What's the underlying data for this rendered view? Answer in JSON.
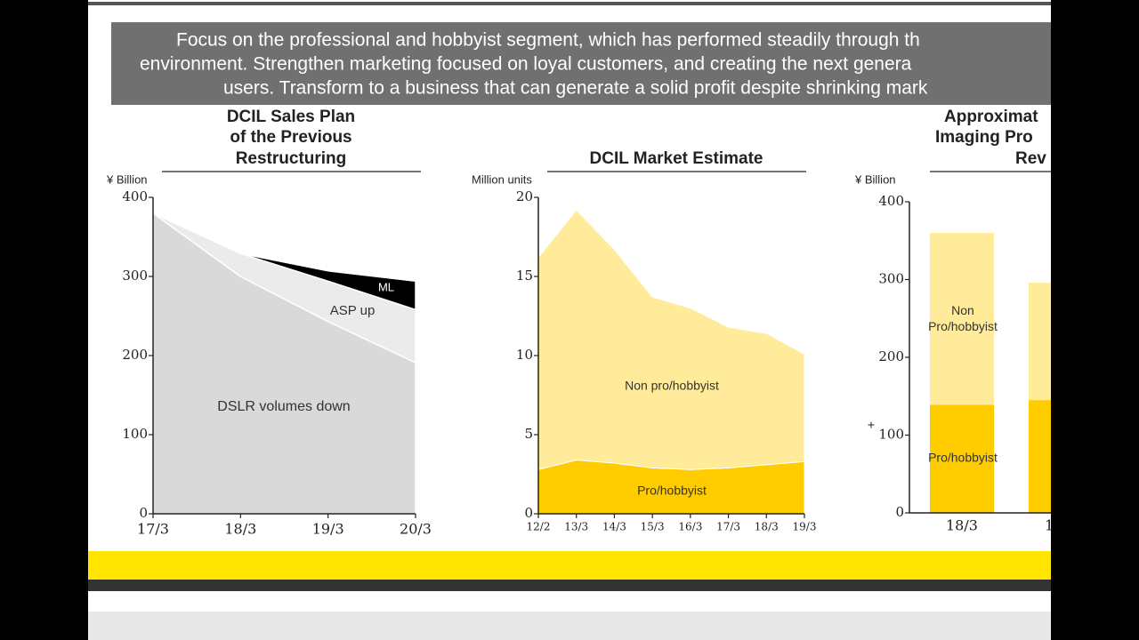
{
  "banner": {
    "lines": [
      "Focus on the professional and hobbyist segment, which has performed steadily through th",
      "environment. Strengthen marketing focused on loyal customers, and creating the next genera",
      "users. Transform to a business that can generate a solid profit despite shrinking mark"
    ]
  },
  "chart_data": [
    {
      "type": "area",
      "stacked": true,
      "title": [
        "DCIL Sales Plan",
        "of the Previous",
        "Restructuring"
      ],
      "y_label": "¥ Billion",
      "categories": [
        "17/3",
        "18/3",
        "19/3",
        "20/3"
      ],
      "ylim": [
        0,
        400
      ],
      "yticks": [
        0,
        100,
        200,
        300,
        400
      ],
      "series": [
        {
          "name": "DSLR volumes down",
          "color": "#d9d9d9",
          "values": [
            380,
            300,
            243,
            191
          ]
        },
        {
          "name": "ASP up",
          "color": "#ebebeb",
          "values": [
            0,
            29,
            51,
            67
          ]
        },
        {
          "name": "ML",
          "color": "#000000",
          "values": [
            null,
            0,
            13,
            36
          ]
        }
      ]
    },
    {
      "type": "area",
      "stacked": true,
      "title": [
        "DCIL Market Estimate"
      ],
      "y_label": "Million units",
      "categories": [
        "12/2",
        "13/3",
        "14/3",
        "15/3",
        "16/3",
        "17/3",
        "18/3",
        "19/3"
      ],
      "ylim": [
        0,
        20
      ],
      "yticks": [
        0,
        5,
        10,
        15,
        20
      ],
      "series": [
        {
          "name": "Pro/hobbyist",
          "color": "#ffcc00",
          "values": [
            2.8,
            3.4,
            3.2,
            2.9,
            2.8,
            2.9,
            3.1,
            3.3
          ]
        },
        {
          "name": "Non pro/hobbyist",
          "color": "#ffeb99",
          "values": [
            13.4,
            15.8,
            13.5,
            10.8,
            10.2,
            8.9,
            8.3,
            6.8
          ]
        }
      ]
    },
    {
      "type": "bar",
      "stacked": true,
      "title": [
        "Approximat",
        "Imaging Pro",
        "Rev"
      ],
      "y_label": "¥ Billion",
      "categories": [
        "18/3",
        "1"
      ],
      "ylim": [
        0,
        400
      ],
      "yticks": [
        0,
        100,
        200,
        300,
        400
      ],
      "annotation": "+",
      "series": [
        {
          "name": "Pro/hobbyist",
          "color": "#ffcc00",
          "values": [
            139,
            145
          ]
        },
        {
          "name": "Non Pro/hobbyist",
          "color": "#ffeb99",
          "values": [
            221,
            151
          ]
        }
      ]
    }
  ]
}
